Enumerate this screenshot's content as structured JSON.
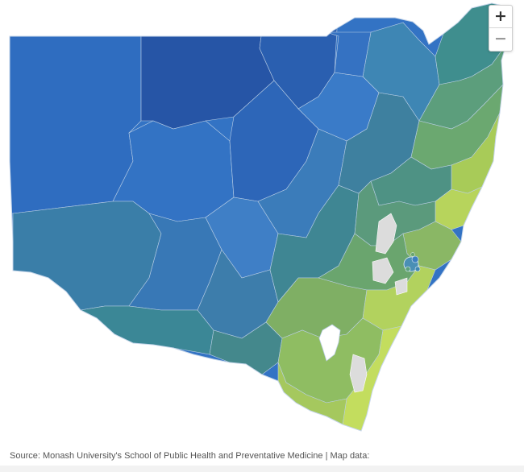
{
  "map": {
    "region": "New South Wales",
    "colors": {
      "dark_blue": "#2a5fb0",
      "blue": "#3373c4",
      "mid_blue": "#3f85c9",
      "teal_blue": "#3c7ea8",
      "teal": "#3e8a92",
      "teal_green": "#4c9a84",
      "green": "#7aae62",
      "yellow_green": "#a9cb5a",
      "lime": "#c2dc5e",
      "no_data": "#dcdcdc",
      "border": "#bcd0e6"
    }
  },
  "zoom": {
    "in_label": "+",
    "out_label": "−"
  },
  "footer": {
    "source": "Source: Monash University's School of Public Health and Preventative Medicine | Map data:"
  }
}
